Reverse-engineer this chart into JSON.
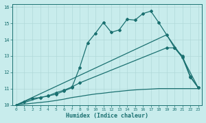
{
  "background_color": "#c8ecec",
  "grid_color": "#b0d8d8",
  "line_color": "#1a7070",
  "xlabel": "Humidex (Indice chaleur)",
  "xlim": [
    -0.5,
    23.5
  ],
  "ylim": [
    10,
    16.2
  ],
  "yticks": [
    10,
    11,
    12,
    13,
    14,
    15,
    16
  ],
  "xticks": [
    0,
    1,
    2,
    3,
    4,
    5,
    6,
    7,
    8,
    9,
    10,
    11,
    12,
    13,
    14,
    15,
    16,
    17,
    18,
    19,
    20,
    21,
    22,
    23
  ],
  "line1_x": [
    0,
    1,
    2,
    3,
    4,
    5,
    6,
    7,
    8,
    9,
    10,
    11,
    12,
    13,
    14,
    15,
    16,
    17,
    18,
    19,
    20,
    21,
    22,
    23
  ],
  "line1_y": [
    10.0,
    10.2,
    10.4,
    10.45,
    10.55,
    10.65,
    10.85,
    11.05,
    12.3,
    13.8,
    14.4,
    15.05,
    14.45,
    14.6,
    15.25,
    15.2,
    15.6,
    15.75,
    15.05,
    14.3,
    13.5,
    12.9,
    11.7,
    11.05
  ],
  "line2_x": [
    0,
    19,
    21,
    23
  ],
  "line2_y": [
    10.0,
    14.3,
    12.9,
    11.05
  ],
  "line3_x": [
    0,
    3,
    4,
    5,
    6,
    7,
    8,
    19,
    20,
    21,
    22,
    23
  ],
  "line3_y": [
    10.0,
    10.45,
    10.55,
    10.75,
    10.9,
    11.1,
    11.35,
    13.5,
    13.5,
    13.0,
    11.75,
    11.05
  ],
  "line4_x": [
    0,
    1,
    2,
    3,
    4,
    5,
    6,
    7,
    8,
    9,
    10,
    11,
    12,
    13,
    14,
    15,
    16,
    17,
    18,
    19,
    20,
    21,
    22,
    23
  ],
  "line4_y": [
    10.0,
    10.05,
    10.1,
    10.15,
    10.2,
    10.27,
    10.35,
    10.45,
    10.52,
    10.6,
    10.67,
    10.72,
    10.78,
    10.83,
    10.88,
    10.92,
    10.95,
    10.97,
    11.0,
    11.0,
    11.0,
    11.0,
    11.0,
    11.0
  ]
}
